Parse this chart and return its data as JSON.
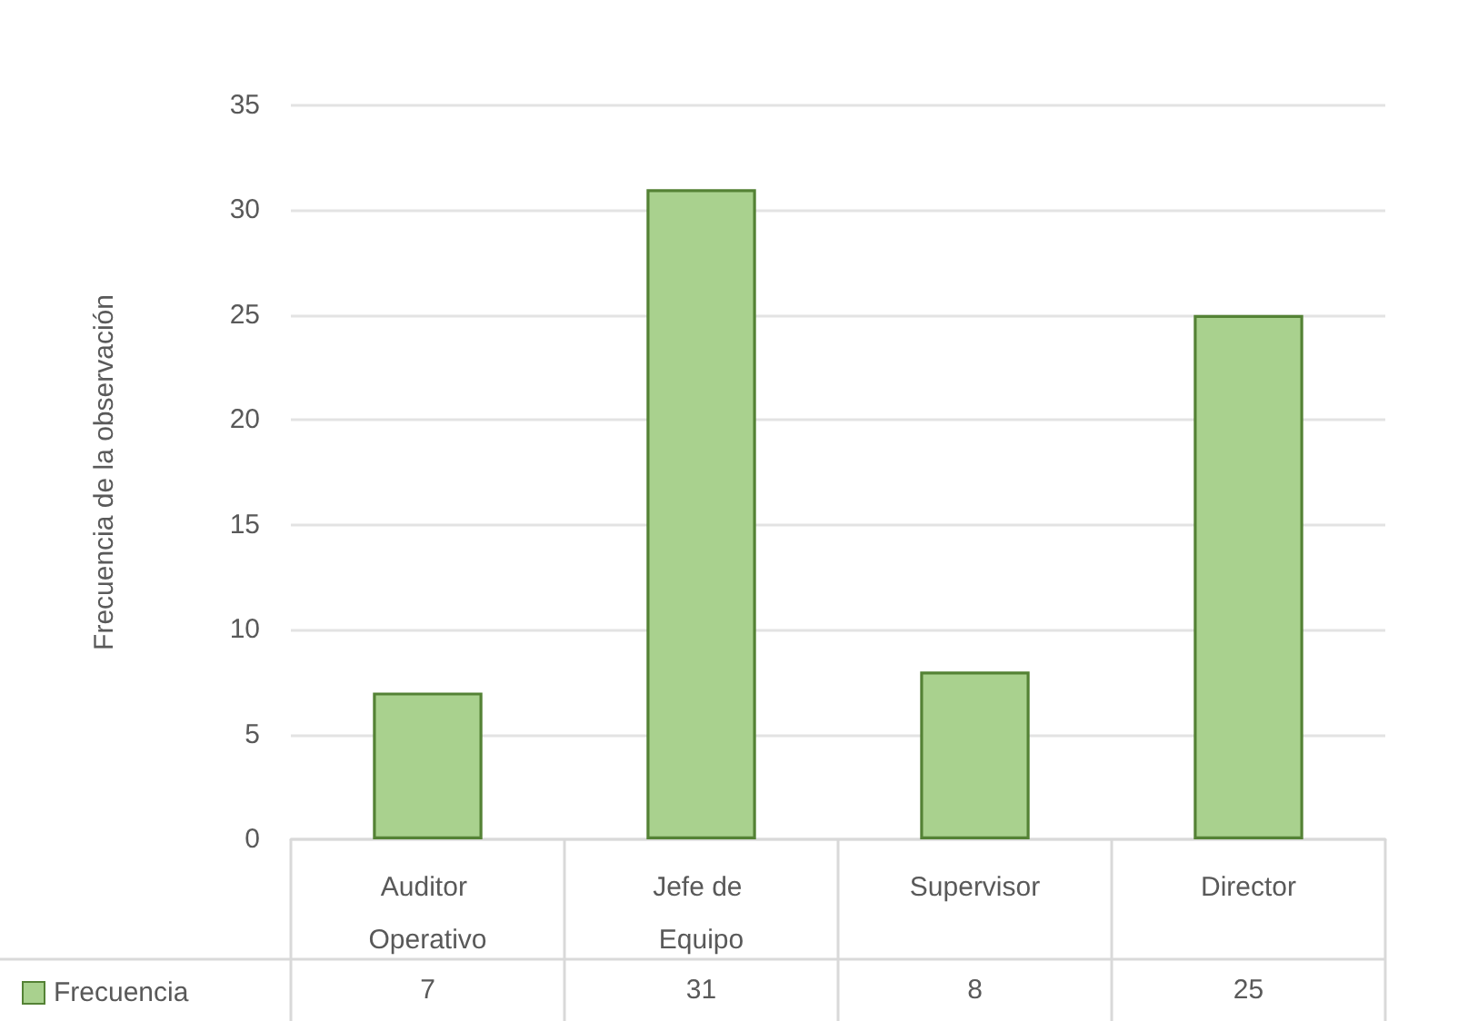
{
  "chart_data": {
    "type": "bar",
    "ylabel": "Frecuencia de la observación",
    "categories": [
      "Auditor Operativo",
      "Jefe de Equipo",
      "Supervisor",
      "Director"
    ],
    "series": [
      {
        "name": "Frecuencia",
        "color": "#a9d18e",
        "values": [
          7,
          31,
          8,
          25
        ]
      }
    ],
    "ylim": [
      0,
      35
    ],
    "yticks": [
      0,
      5,
      10,
      15,
      20,
      25,
      30,
      35
    ],
    "grid": "y",
    "legend": "bottom left",
    "data_labels": true
  }
}
